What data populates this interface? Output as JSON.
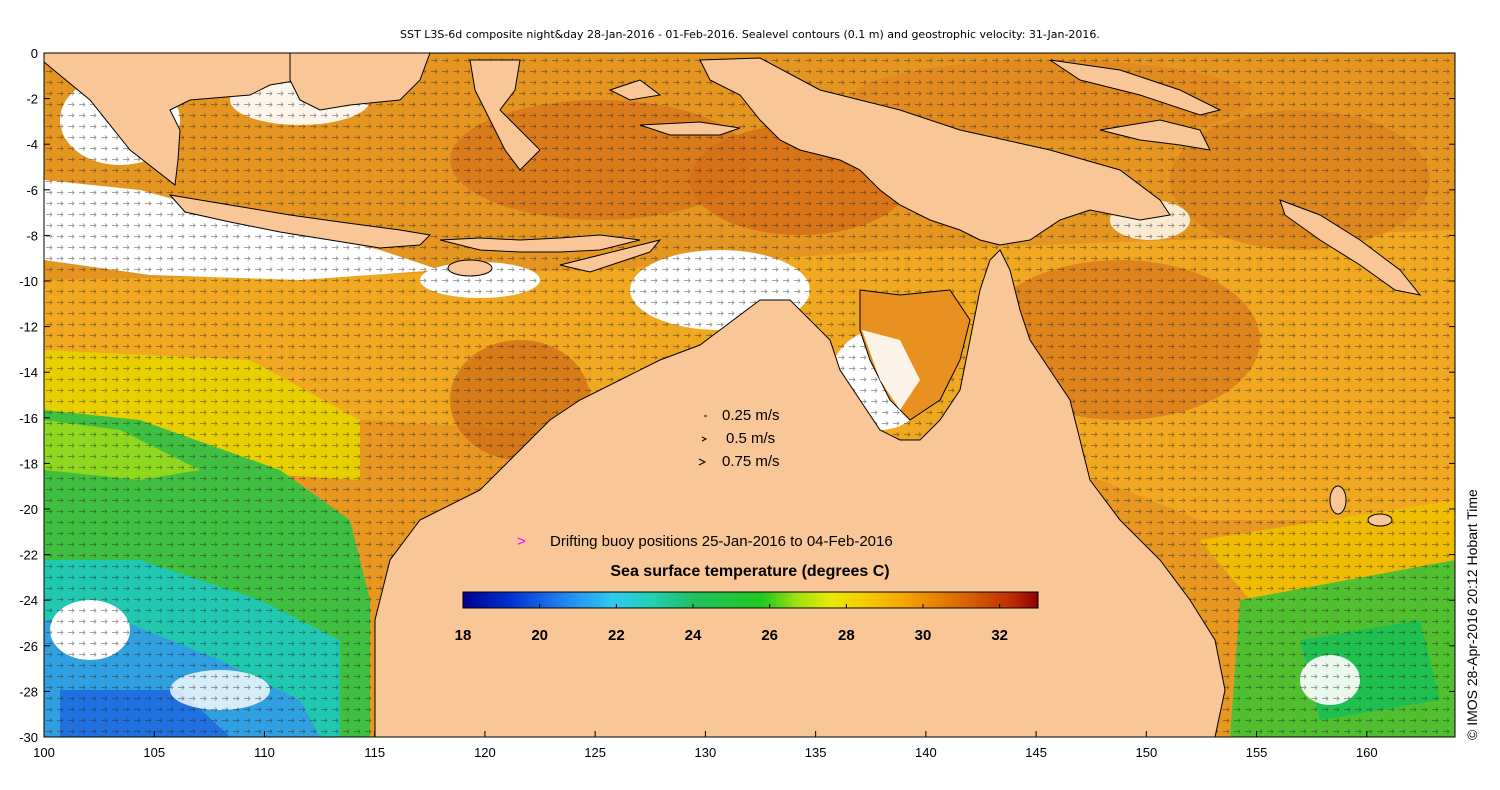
{
  "title": "SST L3S-6d composite night&day 28-Jan-2016 - 01-Feb-2016. Sealevel contours (0.1 m) and geostrophic velocity: 31-Jan-2016.",
  "credit": "© IMOS 28-Apr-2016 20:12 Hobart Time",
  "axes": {
    "x_ticks": [
      "100",
      "105",
      "110",
      "115",
      "120",
      "125",
      "130",
      "135",
      "140",
      "145",
      "150",
      "155",
      "160"
    ],
    "y_ticks": [
      "0",
      "-2",
      "-4",
      "-6",
      "-8",
      "-10",
      "-12",
      "-14",
      "-16",
      "-18",
      "-20",
      "-22",
      "-24",
      "-26",
      "-28",
      "-30"
    ],
    "lon_range": [
      100,
      164
    ],
    "lat_range": [
      -30,
      0
    ]
  },
  "velocity_legend": [
    {
      "label": "0.25 m/s"
    },
    {
      "label": "0.5 m/s"
    },
    {
      "label": "0.75 m/s"
    }
  ],
  "buoy_legend": {
    "symbol": ">",
    "label": "Drifting buoy positions 25-Jan-2016 to 04-Feb-2016",
    "color": "#ff00ff"
  },
  "colorbar": {
    "title": "Sea surface temperature (degrees C)",
    "range": [
      18,
      33
    ],
    "ticks": [
      "18",
      "20",
      "22",
      "24",
      "26",
      "28",
      "30",
      "32"
    ],
    "colors": [
      "#00008f",
      "#0030d0",
      "#2080f0",
      "#30c8f0",
      "#20d0b0",
      "#20c060",
      "#20c820",
      "#a0e010",
      "#e8e800",
      "#f8c000",
      "#f09000",
      "#d86000",
      "#c03000",
      "#900000"
    ]
  },
  "colors": {
    "land": "#f9c698",
    "ocean_warm": "#e89820",
    "ocean_hot": "#d8781c",
    "ocean_green": "#40c040",
    "ocean_blue": "#30a0e0"
  }
}
